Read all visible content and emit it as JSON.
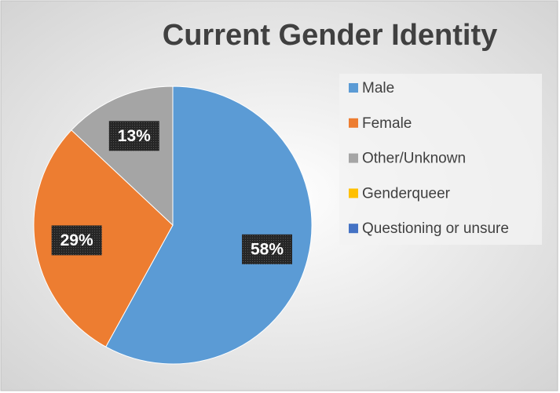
{
  "chart_data": {
    "type": "pie",
    "title": "Current Gender Identity",
    "categories": [
      "Male",
      "Female",
      "Other/Unknown",
      "Genderqueer",
      "Questioning or unsure"
    ],
    "values": [
      58,
      29,
      13,
      0,
      0
    ],
    "value_labels": [
      "58%",
      "29%",
      "13%",
      null,
      null
    ],
    "colors": [
      "#5b9bd5",
      "#ed7d31",
      "#a5a5a5",
      "#ffc000",
      "#4472c4"
    ],
    "legend": "right"
  }
}
